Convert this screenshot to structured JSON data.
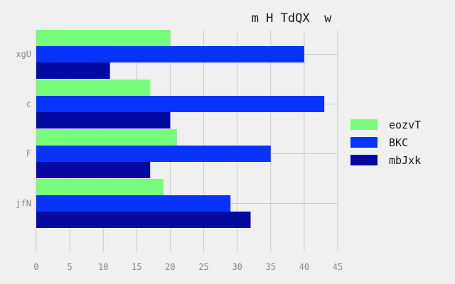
{
  "chart_data": {
    "type": "bar",
    "orientation": "horizontal",
    "title": "m H TdQX  w",
    "categories": [
      "xgU",
      "c",
      "F",
      "jfN"
    ],
    "series": [
      {
        "name": "eozvT",
        "color": "#77fc7c",
        "values": [
          20,
          17,
          21,
          19
        ]
      },
      {
        "name": "BKC",
        "color": "#0733fa",
        "values": [
          40,
          43,
          35,
          29
        ]
      },
      {
        "name": "mbJxk",
        "color": "#0509a0",
        "values": [
          11,
          20,
          17,
          32
        ]
      }
    ],
    "xlim": [
      0,
      45
    ],
    "xticks": [
      0,
      5,
      10,
      15,
      20,
      25,
      30,
      35,
      40,
      45
    ],
    "xlabel": "",
    "ylabel": "",
    "grid": true,
    "legend_position": "right"
  }
}
